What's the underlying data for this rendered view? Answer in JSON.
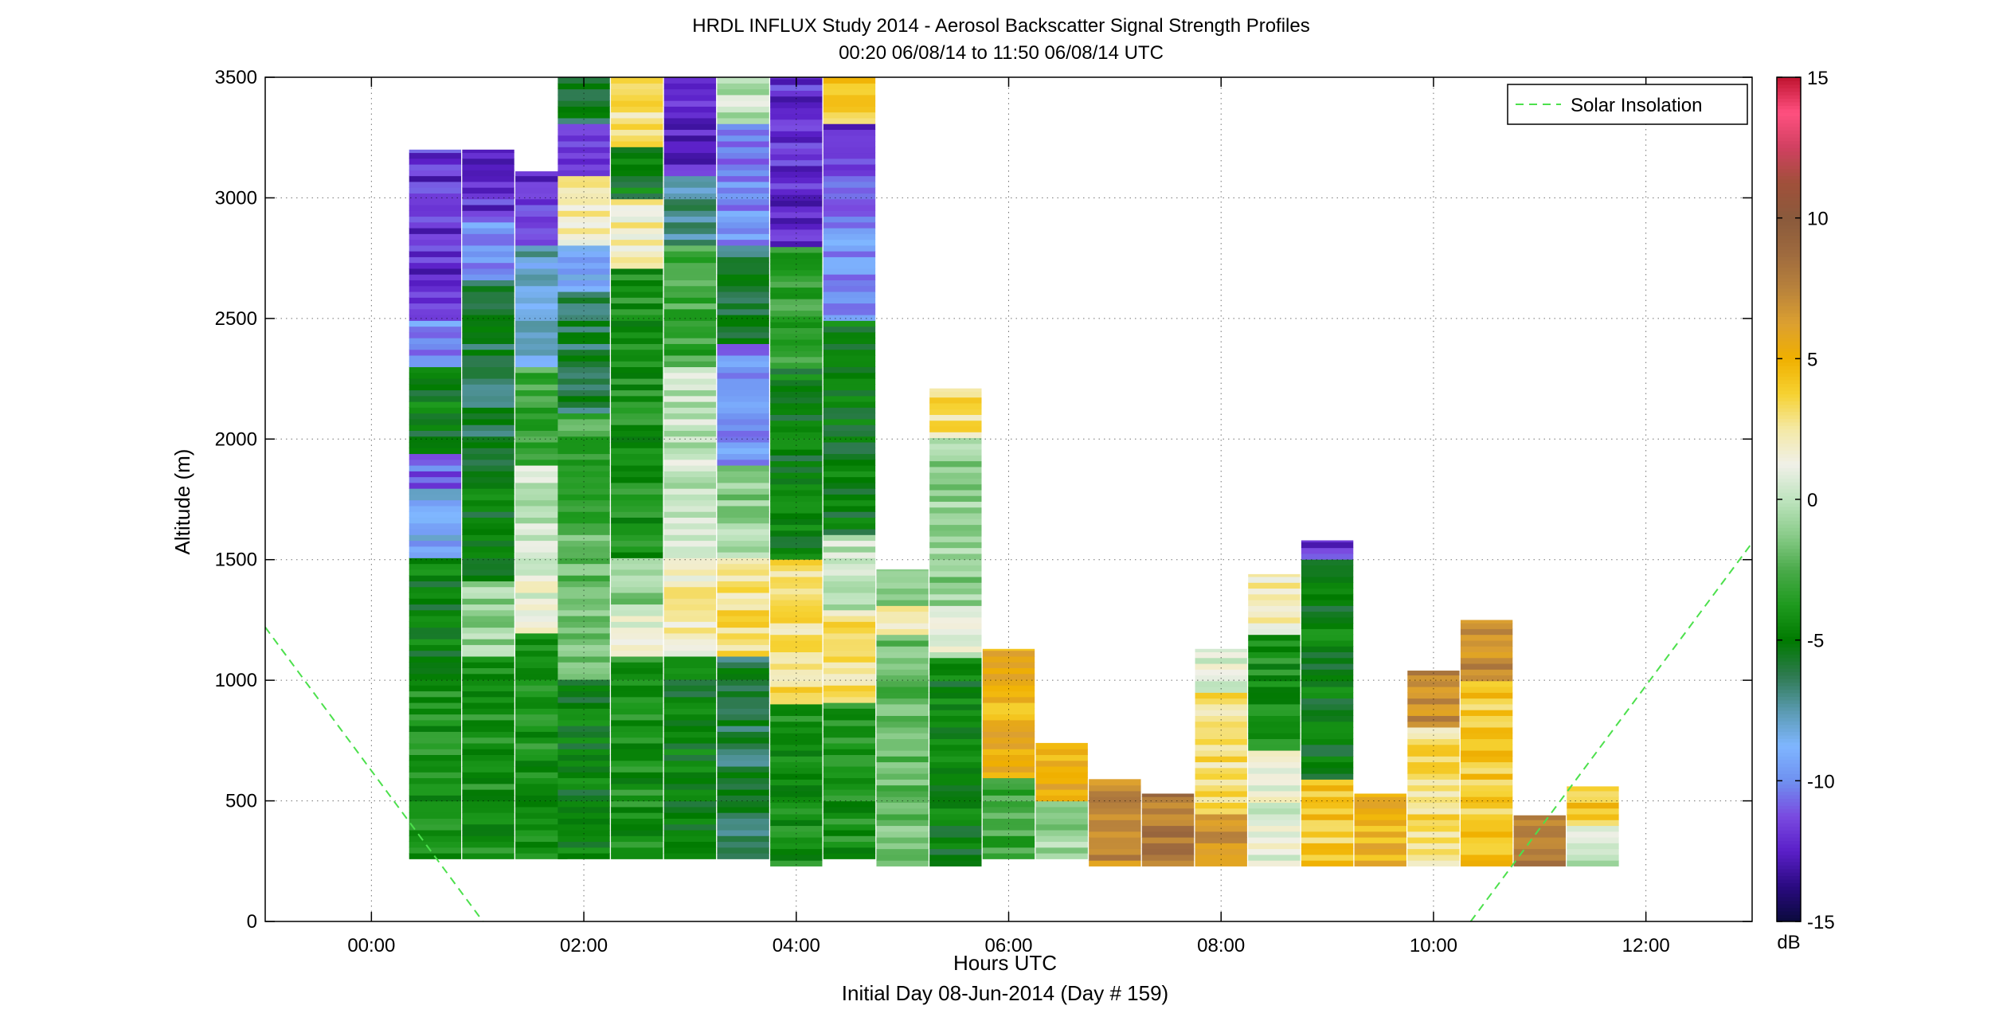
{
  "chart_data": {
    "type": "heatmap",
    "title": "HRDL INFLUX Study 2014 - Aerosol Backscatter Signal Strength Profiles",
    "subtitle": "00:20 06/08/14 to 11:50 06/08/14  UTC",
    "xlabel": "Hours UTC",
    "xlabel_note": "Initial Day 08-Jun-2014 (Day # 159)",
    "ylabel": "Altitude (m)",
    "xlim": [
      -1,
      13
    ],
    "ylim": [
      0,
      3500
    ],
    "grid": true,
    "x_tick_labels": [
      "00:00",
      "02:00",
      "04:00",
      "06:00",
      "08:00",
      "10:00",
      "12:00"
    ],
    "x_tick_values": [
      0,
      2,
      4,
      6,
      8,
      10,
      12
    ],
    "y_tick_values": [
      0,
      500,
      1000,
      1500,
      2000,
      2500,
      3000,
      3500
    ],
    "colorbar": {
      "range": [
        -15,
        15
      ],
      "ticks": [
        -15,
        -10,
        -5,
        0,
        5,
        10,
        15
      ],
      "unit": "dB",
      "colors": [
        "#0a0a3c",
        "#2a0a80",
        "#5a1fc8",
        "#7a4ae0",
        "#6f90f0",
        "#7fb6ff",
        "#5a9ab0",
        "#2e7a50",
        "#007a00",
        "#1e9a1e",
        "#4aaa4a",
        "#8acc8a",
        "#bfe4bf",
        "#f0f0e8",
        "#f4e9a6",
        "#f6d232",
        "#f0b000",
        "#dca030",
        "#b8823c",
        "#9e6a3e",
        "#8a5a3c",
        "#a0503a",
        "#d04060",
        "#ff5080",
        "#c01430"
      ]
    },
    "legend": {
      "entries": [
        "Solar Insolation"
      ],
      "placement": "top-right"
    },
    "solar_insolation": [
      {
        "x": [
          -1.0,
          1.05
        ],
        "y": [
          1220,
          0
        ]
      },
      {
        "x": [
          10.35,
          13.0
        ],
        "y": [
          0,
          1570
        ]
      }
    ],
    "profiles": [
      {
        "t": 0.6,
        "base": 260,
        "top": 3200,
        "layers": [
          [
            260,
            1000,
            -4
          ],
          [
            1000,
            1500,
            -5
          ],
          [
            1500,
            1800,
            -9
          ],
          [
            1800,
            1950,
            -11
          ],
          [
            1950,
            2300,
            -5
          ],
          [
            2300,
            2500,
            -10
          ],
          [
            2500,
            3200,
            -12
          ]
        ]
      },
      {
        "t": 1.1,
        "base": 260,
        "top": 3200,
        "layers": [
          [
            260,
            1100,
            -4
          ],
          [
            1100,
            1400,
            -1
          ],
          [
            1400,
            1800,
            -5
          ],
          [
            1800,
            2650,
            -6
          ],
          [
            2650,
            2900,
            -10
          ],
          [
            2900,
            3200,
            -12
          ]
        ]
      },
      {
        "t": 1.6,
        "base": 260,
        "top": 3110,
        "layers": [
          [
            260,
            1200,
            -4
          ],
          [
            1200,
            1500,
            1
          ],
          [
            1500,
            1900,
            0
          ],
          [
            1900,
            2300,
            -3
          ],
          [
            2300,
            2800,
            -8
          ],
          [
            2800,
            3110,
            -12
          ]
        ]
      },
      {
        "t": 2.0,
        "base": 260,
        "top": 3500,
        "layers": [
          [
            260,
            1000,
            -5
          ],
          [
            1000,
            1600,
            -2
          ],
          [
            1600,
            2100,
            -3
          ],
          [
            2100,
            2600,
            -6
          ],
          [
            2600,
            2800,
            -9
          ],
          [
            2800,
            3100,
            2
          ],
          [
            3100,
            3300,
            -12
          ],
          [
            3300,
            3500,
            -6
          ]
        ]
      },
      {
        "t": 2.5,
        "base": 260,
        "top": 3500,
        "layers": [
          [
            260,
            1100,
            -4
          ],
          [
            1100,
            1300,
            1
          ],
          [
            1300,
            1500,
            -1
          ],
          [
            1500,
            2700,
            -4
          ],
          [
            2700,
            3000,
            2
          ],
          [
            3000,
            3200,
            -5
          ],
          [
            3200,
            3500,
            3
          ]
        ]
      },
      {
        "t": 3.0,
        "base": 260,
        "top": 3500,
        "layers": [
          [
            260,
            1100,
            -5
          ],
          [
            1100,
            1500,
            2
          ],
          [
            1500,
            2300,
            0
          ],
          [
            2300,
            2800,
            -3
          ],
          [
            2800,
            3100,
            -7
          ],
          [
            3100,
            3500,
            -12
          ]
        ]
      },
      {
        "t": 3.5,
        "base": 260,
        "top": 3500,
        "layers": [
          [
            260,
            1100,
            -6
          ],
          [
            1100,
            1500,
            3
          ],
          [
            1500,
            1900,
            -1
          ],
          [
            1900,
            2400,
            -10
          ],
          [
            2400,
            2800,
            -6
          ],
          [
            2800,
            3300,
            -10
          ],
          [
            3300,
            3500,
            0
          ]
        ]
      },
      {
        "t": 4.0,
        "base": 230,
        "top": 3500,
        "layers": [
          [
            230,
            900,
            -4
          ],
          [
            900,
            1500,
            3
          ],
          [
            1500,
            2300,
            -5
          ],
          [
            2300,
            2800,
            -3
          ],
          [
            2800,
            3500,
            -12
          ]
        ]
      },
      {
        "t": 4.5,
        "base": 260,
        "top": 3500,
        "layers": [
          [
            260,
            900,
            -4
          ],
          [
            900,
            1300,
            3
          ],
          [
            1300,
            1600,
            0
          ],
          [
            1600,
            2500,
            -5
          ],
          [
            2500,
            3100,
            -10
          ],
          [
            3100,
            3300,
            -12
          ],
          [
            3300,
            3500,
            4
          ]
        ]
      },
      {
        "t": 5.0,
        "base": 230,
        "top": 1460,
        "layers": [
          [
            230,
            1200,
            -2
          ],
          [
            1200,
            1300,
            2
          ],
          [
            1300,
            1460,
            -1
          ]
        ]
      },
      {
        "t": 5.5,
        "base": 230,
        "top": 2210,
        "layers": [
          [
            230,
            1100,
            -5
          ],
          [
            1100,
            1300,
            1
          ],
          [
            1300,
            2000,
            -1
          ],
          [
            2000,
            2210,
            3
          ]
        ]
      },
      {
        "t": 6.0,
        "base": 260,
        "top": 1130,
        "layers": [
          [
            260,
            600,
            -3
          ],
          [
            600,
            1130,
            5
          ]
        ]
      },
      {
        "t": 6.5,
        "base": 260,
        "top": 740,
        "layers": [
          [
            260,
            500,
            -1
          ],
          [
            500,
            740,
            5
          ]
        ]
      },
      {
        "t": 7.0,
        "base": 230,
        "top": 590,
        "layers": [
          [
            230,
            590,
            7
          ]
        ]
      },
      {
        "t": 7.5,
        "base": 230,
        "top": 530,
        "layers": [
          [
            230,
            530,
            8
          ]
        ]
      },
      {
        "t": 8.0,
        "base": 230,
        "top": 1130,
        "layers": [
          [
            230,
            450,
            7
          ],
          [
            450,
            950,
            3
          ],
          [
            950,
            1130,
            1
          ]
        ]
      },
      {
        "t": 8.5,
        "base": 230,
        "top": 1440,
        "layers": [
          [
            230,
            700,
            1
          ],
          [
            700,
            1200,
            -4
          ],
          [
            1200,
            1440,
            2
          ]
        ]
      },
      {
        "t": 9.0,
        "base": 230,
        "top": 1580,
        "layers": [
          [
            230,
            600,
            4
          ],
          [
            600,
            1500,
            -5
          ],
          [
            1500,
            1580,
            -12
          ]
        ]
      },
      {
        "t": 9.5,
        "base": 230,
        "top": 530,
        "layers": [
          [
            230,
            530,
            5
          ]
        ]
      },
      {
        "t": 10.0,
        "base": 230,
        "top": 1040,
        "layers": [
          [
            230,
            800,
            3
          ],
          [
            800,
            1040,
            7
          ]
        ]
      },
      {
        "t": 10.5,
        "base": 230,
        "top": 1250,
        "layers": [
          [
            230,
            1000,
            4
          ],
          [
            1000,
            1250,
            7
          ]
        ]
      },
      {
        "t": 11.0,
        "base": 230,
        "top": 440,
        "layers": [
          [
            230,
            440,
            8
          ]
        ]
      },
      {
        "t": 11.5,
        "base": 230,
        "top": 560,
        "layers": [
          [
            230,
            400,
            0
          ],
          [
            400,
            560,
            4
          ]
        ]
      }
    ]
  }
}
